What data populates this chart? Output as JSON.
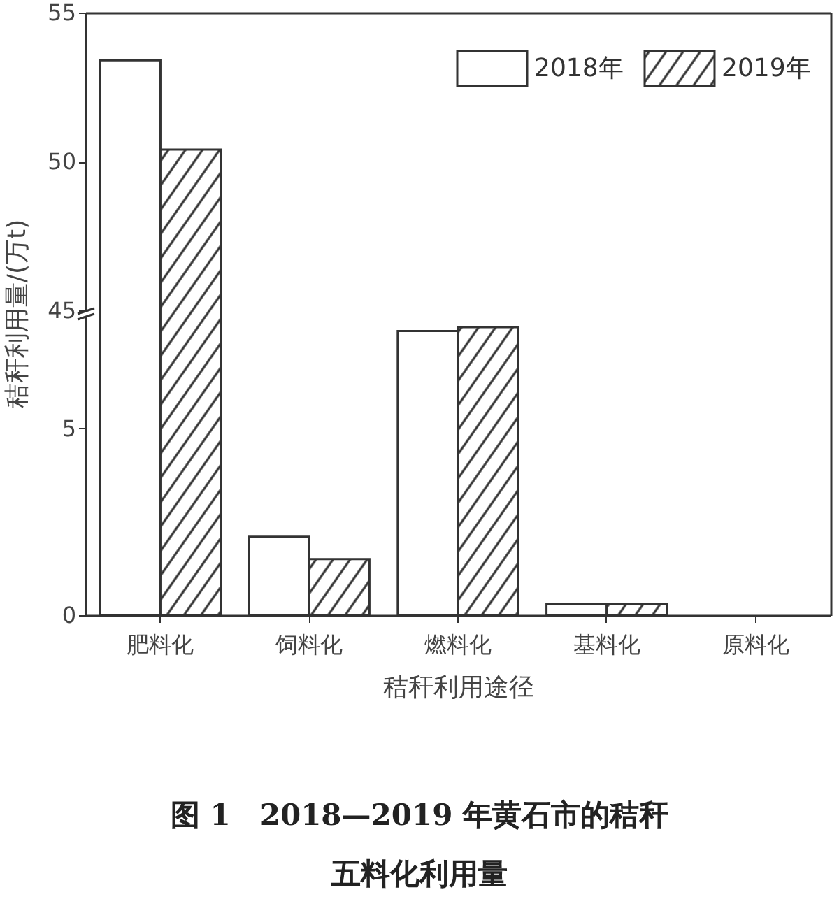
{
  "chart_data": [
    {
      "type": "bar",
      "ylabel": "秸秆利用量/(万t)",
      "series": [
        {
          "name": "2018年",
          "color": "#ffffff",
          "values": [
            53.4,
            null,
            null,
            null,
            null
          ]
        },
        {
          "name": "2019年",
          "color": "#333333",
          "values": [
            50.4,
            null,
            null,
            null,
            null
          ]
        }
      ],
      "ylim": [
        45,
        55
      ],
      "yticks": [
        45,
        50,
        55
      ],
      "grid": false,
      "legend": "top right",
      "tick_labels": "y"
    },
    {
      "type": "bar",
      "title": "图 1　2018—2019 年黄石市的秸秆五料化利用量",
      "xlabel": "秸秆利用途径",
      "categories": [
        "肥料化",
        "饲料化",
        "燃料化",
        "基料化",
        "原料化"
      ],
      "series": [
        {
          "color": "#ffffff",
          "values": [
            null,
            2.1,
            7.6,
            0.3,
            null
          ]
        },
        {
          "color": "#333333",
          "values": [
            null,
            1.5,
            7.7,
            0.3,
            null
          ]
        }
      ],
      "ylim": [
        0,
        8
      ],
      "yticks": [
        0,
        5
      ],
      "grid": false
    }
  ]
}
